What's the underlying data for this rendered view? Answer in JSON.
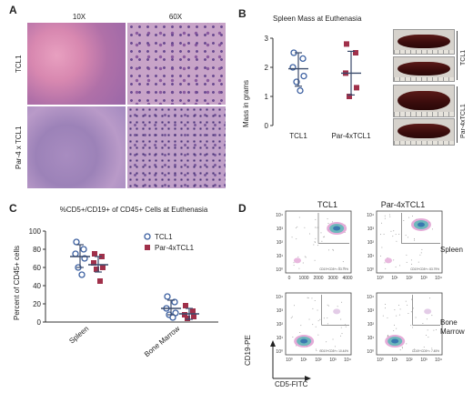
{
  "panels": {
    "a": "A",
    "b": "B",
    "c": "C",
    "d": "D"
  },
  "panel_a": {
    "col_labels": [
      "10X",
      "60X"
    ],
    "row_labels": [
      "TCL1",
      "Par-4 x TCL1"
    ]
  },
  "panel_b": {
    "photo_labels": [
      "TCL1",
      "Par-4xTCL1"
    ]
  },
  "panel_d": {
    "col_labels": [
      "TCL1",
      "Par-4xTCL1"
    ],
    "row_labels": [
      "Spleen",
      "Bone Marrow"
    ],
    "y_axis_label": "CD19-PE",
    "x_axis_label": "CD5-FITC",
    "y_ticks_top": [
      "10⁴",
      "10³",
      "10²",
      "10¹",
      "10⁰"
    ],
    "x_ticks_top": [
      "0",
      "1000",
      "2000",
      "3000",
      "4000"
    ],
    "x_ticks_top_right": [
      "10⁰",
      "10¹",
      "10²",
      "10³",
      "10⁴"
    ],
    "gate_text": [
      "CD19+CD5+= 83.79%",
      "CD19+CD5+= 83.79%"
    ],
    "gate_text_bottom": [
      "CD19+CD5+= 10.44%",
      "CD19+CD5+= 7.45%"
    ]
  },
  "chart_data": [
    {
      "type": "scatter",
      "title": "Spleen Mass at Euthenasia",
      "xlabel": "",
      "ylabel": "Mass in grams",
      "ylim": [
        0,
        3
      ],
      "yticks": [
        "0",
        "1",
        "2",
        "3"
      ],
      "categories": [
        "TCL1",
        "Par-4xTCL1"
      ],
      "series": [
        {
          "name": "TCL1",
          "marker": "open-circle",
          "color": "#3b5fa0",
          "values": [
            2.5,
            2.3,
            2.0,
            1.7,
            1.5,
            1.2
          ],
          "mean": 1.95,
          "sd": [
            1.35,
            2.5
          ]
        },
        {
          "name": "Par-4xTCL1",
          "marker": "filled-square",
          "color": "#a0304a",
          "values": [
            2.8,
            2.5,
            1.8,
            1.3,
            1.0
          ],
          "mean": 1.8,
          "sd": [
            1.05,
            2.55
          ]
        }
      ]
    },
    {
      "type": "scatter",
      "title": "%CD5+/CD19+ of CD45+ Cells at Euthenasia",
      "xlabel": "",
      "ylabel": "Percent of CD45+ cells",
      "ylim": [
        0,
        100
      ],
      "yticks": [
        "0",
        "20",
        "40",
        "60",
        "80",
        "100"
      ],
      "categories": [
        "Spleen",
        "Bone Marrow"
      ],
      "legend": "top-right",
      "series": [
        {
          "name": "TCL1",
          "marker": "open-circle",
          "color": "#3b5fa0",
          "groups": [
            [
              88,
              80,
              75,
              70,
              60,
              52
            ],
            [
              28,
              22,
              15,
              10,
              8,
              5
            ]
          ],
          "mean": [
            72,
            15
          ],
          "sd": [
            [
              60,
              85
            ],
            [
              8,
              24
            ]
          ]
        },
        {
          "name": "Par-4xTCL1",
          "marker": "filled-square",
          "color": "#a0304a",
          "groups": [
            [
              75,
              72,
              65,
              60,
              58,
              45
            ],
            [
              18,
              12,
              8,
              6,
              4
            ]
          ],
          "mean": [
            63,
            9
          ],
          "sd": [
            [
              55,
              72
            ],
            [
              3,
              15
            ]
          ]
        }
      ]
    }
  ]
}
